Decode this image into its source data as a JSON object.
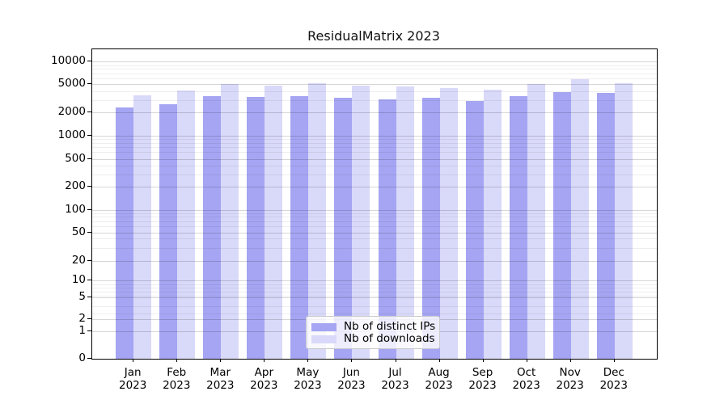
{
  "chart_data": {
    "type": "bar",
    "title": "ResidualMatrix 2023",
    "categories": [
      "Jan",
      "Feb",
      "Mar",
      "Apr",
      "May",
      "Jun",
      "Jul",
      "Aug",
      "Sep",
      "Oct",
      "Nov",
      "Dec"
    ],
    "year_label": "2023",
    "series": [
      {
        "name": "Nb of distinct IPs",
        "color": "#a5a5f3",
        "values": [
          2400,
          2700,
          3400,
          3350,
          3400,
          3250,
          3100,
          3250,
          2950,
          3400,
          3900,
          3800
        ]
      },
      {
        "name": "Nb of downloads",
        "color": "#d9d9f9",
        "values": [
          3500,
          4100,
          5000,
          4750,
          5100,
          4750,
          4600,
          4400,
          4200,
          4950,
          5800,
          5100
        ]
      }
    ],
    "yscale": "log1p",
    "yticks": [
      0,
      1,
      2,
      5,
      10,
      20,
      50,
      100,
      200,
      500,
      1000,
      2000,
      5000,
      10000
    ],
    "minor_grid_multipliers": [
      3,
      4,
      6,
      7,
      8,
      9
    ],
    "minor_grid_decades": [
      1,
      10,
      100,
      1000
    ],
    "ylim": [
      0,
      14500
    ],
    "xlabel": "",
    "ylabel": "",
    "grid": "major+minor",
    "legend_position": "lower center",
    "colors": {
      "grid_major": "rgba(0,0,0,0.16)",
      "grid_minor": "rgba(0,0,0,0.065)",
      "spine": "#000000",
      "background": "#ffffff",
      "legend_border": "#cbcbcb"
    }
  }
}
